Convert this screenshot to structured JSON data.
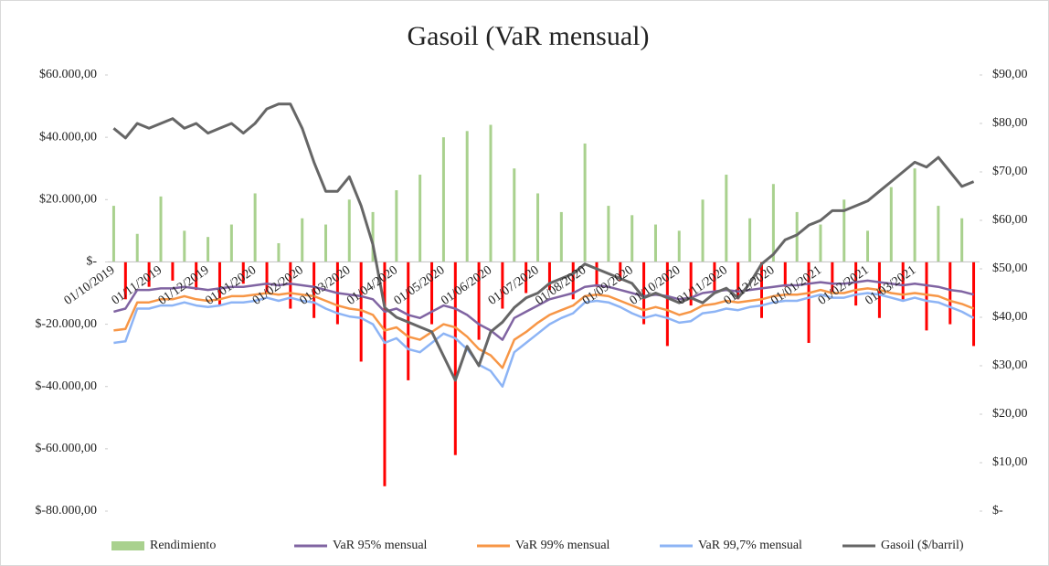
{
  "chart_data": {
    "type": "combo",
    "title": "Gasoil (VaR mensual)",
    "categories": [
      "01/10/2019",
      null,
      null,
      null,
      "01/11/2019",
      null,
      null,
      null,
      "01/12/2019",
      null,
      null,
      null,
      "01/01/2020",
      null,
      null,
      null,
      "01/02/2020",
      null,
      null,
      null,
      "01/03/2020",
      null,
      null,
      null,
      "01/04/2020",
      null,
      null,
      null,
      "01/05/2020",
      null,
      null,
      null,
      "01/06/2020",
      null,
      null,
      null,
      "01/07/2020",
      null,
      null,
      null,
      "01/08/2020",
      null,
      null,
      null,
      "01/09/2020",
      null,
      null,
      null,
      "01/10/2020",
      null,
      null,
      null,
      "01/11/2020",
      null,
      null,
      null,
      "01/12/2020",
      null,
      null,
      null,
      "01/01/2021",
      null,
      null,
      null,
      "01/02/2021",
      null,
      null,
      null,
      "01/03/2021",
      null,
      null,
      null,
      null,
      null
    ],
    "series": [
      {
        "name": "Rendimiento",
        "type": "bar",
        "color": "#a9d18e",
        "negative_color": "#ff0000",
        "values": [
          18000,
          -12000,
          9000,
          -8000,
          21000,
          -6000,
          10000,
          -9000,
          8000,
          -14000,
          12000,
          -7000,
          22000,
          -10000,
          6000,
          -15000,
          14000,
          -18000,
          12000,
          -20000,
          20000,
          -32000,
          16000,
          -72000,
          23000,
          -38000,
          28000,
          -20000,
          40000,
          -62000,
          42000,
          -25000,
          44000,
          -15000,
          30000,
          -10000,
          22000,
          -9000,
          16000,
          -12000,
          38000,
          -8000,
          18000,
          -6000,
          15000,
          -20000,
          12000,
          -27000,
          10000,
          -14000,
          20000,
          -10000,
          28000,
          -12000,
          14000,
          -18000,
          25000,
          -8000,
          16000,
          -26000,
          12000,
          -10000,
          20000,
          -14000,
          10000,
          -18000,
          24000,
          -12000,
          30000,
          -22000,
          18000,
          -20000,
          14000,
          -27000
        ]
      },
      {
        "name": "VaR 95% mensual",
        "type": "line",
        "color": "#8064a2",
        "values": [
          -16000,
          -15000,
          -9000,
          -9000,
          -8500,
          -8500,
          -8000,
          -8500,
          -9000,
          -8500,
          -8000,
          -8000,
          -7500,
          -7000,
          -7500,
          -7000,
          -7500,
          -8000,
          -9000,
          -10000,
          -10500,
          -11000,
          -12000,
          -16000,
          -15000,
          -17000,
          -18000,
          -16000,
          -14000,
          -15000,
          -17000,
          -20000,
          -22000,
          -25000,
          -18000,
          -16000,
          -14000,
          -12000,
          -11000,
          -10000,
          -8000,
          -7500,
          -8000,
          -9000,
          -10000,
          -11000,
          -10500,
          -11000,
          -12000,
          -11500,
          -10000,
          -9500,
          -9000,
          -9500,
          -9000,
          -8500,
          -8000,
          -7500,
          -7500,
          -7000,
          -6500,
          -7000,
          -7000,
          -6500,
          -6000,
          -6500,
          -7000,
          -7500,
          -7000,
          -7500,
          -8000,
          -9000,
          -9500,
          -10500
        ]
      },
      {
        "name": "VaR 99% mensual",
        "type": "line",
        "color": "#f79646",
        "values": [
          -22000,
          -21500,
          -13000,
          -13000,
          -12000,
          -12000,
          -11000,
          -12000,
          -12500,
          -12000,
          -11000,
          -11000,
          -10500,
          -10000,
          -10500,
          -10000,
          -10500,
          -11000,
          -12500,
          -14000,
          -15000,
          -15500,
          -17000,
          -22000,
          -21000,
          -24000,
          -25000,
          -22500,
          -20000,
          -21000,
          -24000,
          -28000,
          -30000,
          -34000,
          -25000,
          -22500,
          -19500,
          -17000,
          -15500,
          -14000,
          -11000,
          -10500,
          -11000,
          -12500,
          -14000,
          -15500,
          -14500,
          -15500,
          -17000,
          -16000,
          -14000,
          -13500,
          -12500,
          -13000,
          -12500,
          -12000,
          -11000,
          -10500,
          -10500,
          -10000,
          -9000,
          -10000,
          -10000,
          -9000,
          -8500,
          -9000,
          -10000,
          -10500,
          -10000,
          -10500,
          -11000,
          -12500,
          -13500,
          -15000
        ]
      },
      {
        "name": "VaR 99,7% mensual",
        "type": "line",
        "color": "#8db4f5",
        "values": [
          -26000,
          -25500,
          -15000,
          -15000,
          -14000,
          -14000,
          -13000,
          -14000,
          -14500,
          -14000,
          -13000,
          -13000,
          -12500,
          -11500,
          -12500,
          -11500,
          -12500,
          -13000,
          -15000,
          -16500,
          -17500,
          -18000,
          -20000,
          -26000,
          -24500,
          -28000,
          -29000,
          -26000,
          -23000,
          -24500,
          -28000,
          -33000,
          -35000,
          -40000,
          -29000,
          -26000,
          -23000,
          -20000,
          -18000,
          -16500,
          -13000,
          -12500,
          -13000,
          -14500,
          -16500,
          -18000,
          -17000,
          -18000,
          -19500,
          -19000,
          -16500,
          -16000,
          -15000,
          -15500,
          -14500,
          -14000,
          -13000,
          -12500,
          -12500,
          -11500,
          -10500,
          -11500,
          -11500,
          -10500,
          -10000,
          -10500,
          -11500,
          -12500,
          -11500,
          -12500,
          -13000,
          -14500,
          -16000,
          -18000
        ]
      },
      {
        "name": "Gasoil ($/barril)",
        "type": "line",
        "axis": "y2",
        "color": "#666666",
        "values": [
          79,
          77,
          80,
          79,
          80,
          81,
          79,
          80,
          78,
          79,
          80,
          78,
          80,
          83,
          84,
          84,
          79,
          72,
          66,
          66,
          69,
          63,
          55,
          42,
          40,
          39,
          38,
          37,
          32,
          27,
          34,
          30,
          37,
          39,
          42,
          44,
          45,
          47,
          48,
          49,
          51,
          50,
          49,
          48,
          47,
          44,
          45,
          44,
          43,
          44,
          43,
          45,
          46,
          44,
          47,
          51,
          53,
          56,
          57,
          59,
          60,
          62,
          62,
          63,
          64,
          66,
          68,
          70,
          72,
          71,
          73,
          70,
          67,
          68
        ]
      }
    ],
    "ylim": [
      -80000,
      60000
    ],
    "yticks": [
      {
        "value": 60000,
        "label": "$60.000,00"
      },
      {
        "value": 40000,
        "label": "$40.000,00"
      },
      {
        "value": 20000,
        "label": "$20.000,00"
      },
      {
        "value": 0,
        "label": "$-"
      },
      {
        "value": -20000,
        "label": "$-20.000,00"
      },
      {
        "value": -40000,
        "label": "$-40.000,00"
      },
      {
        "value": -60000,
        "label": "$-60.000,00"
      },
      {
        "value": -80000,
        "label": "$-80.000,00"
      }
    ],
    "y2lim": [
      0,
      90
    ],
    "y2ticks": [
      {
        "value": 90,
        "label": "$90,00"
      },
      {
        "value": 80,
        "label": "$80,00"
      },
      {
        "value": 70,
        "label": "$70,00"
      },
      {
        "value": 60,
        "label": "$60,00"
      },
      {
        "value": 50,
        "label": "$50,00"
      },
      {
        "value": 40,
        "label": "$40,00"
      },
      {
        "value": 30,
        "label": "$30,00"
      },
      {
        "value": 20,
        "label": "$20,00"
      },
      {
        "value": 10,
        "label": "$10,00"
      },
      {
        "value": 0,
        "label": "$-"
      }
    ],
    "legend": "bottom"
  }
}
